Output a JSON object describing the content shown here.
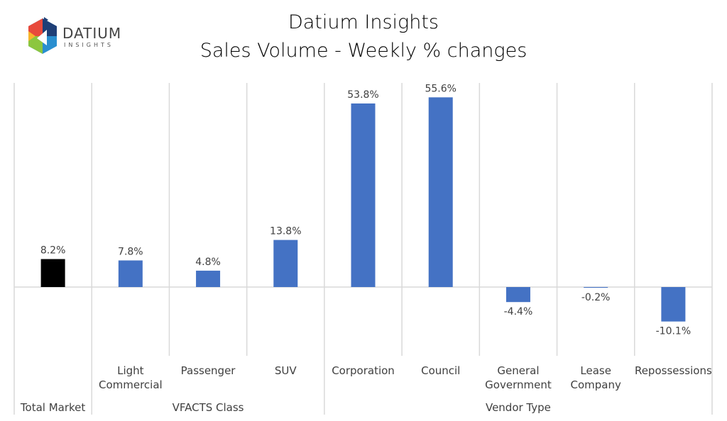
{
  "logo": {
    "text": "DATIUM",
    "subtext": "INSIGHTS"
  },
  "chart_data": {
    "type": "bar",
    "title": "Datium Insights",
    "subtitle": "Sales Volume - Weekly % changes",
    "categories": [
      "Total Market",
      "Light Commercial",
      "Passenger",
      "SUV",
      "Corporation",
      "Council",
      "General Government",
      "Lease Company",
      "Repossessions"
    ],
    "category_lines": [
      [
        "Total Market"
      ],
      [
        "Light",
        "Commercial"
      ],
      [
        "Passenger"
      ],
      [
        "SUV"
      ],
      [
        "Corporation"
      ],
      [
        "Council"
      ],
      [
        "General",
        "Government"
      ],
      [
        "Lease",
        "Company"
      ],
      [
        "Repossessions"
      ]
    ],
    "groups": [
      {
        "label": "Total Market",
        "span": 1,
        "hide_sub": true
      },
      {
        "label": "VFACTS Class",
        "span": 3
      },
      {
        "label": "Vendor Type",
        "span": 5
      }
    ],
    "values": [
      8.2,
      7.8,
      4.8,
      13.8,
      53.8,
      55.6,
      -4.4,
      -0.2,
      -10.1
    ],
    "data_labels": [
      "8.2%",
      "7.8%",
      "4.8%",
      "13.8%",
      "53.8%",
      "55.6%",
      "-4.4%",
      "-0.2%",
      "-10.1%"
    ],
    "colors": [
      "#000000",
      "#4472C4",
      "#4472C4",
      "#4472C4",
      "#4472C4",
      "#4472C4",
      "#4472C4",
      "#4472C4",
      "#4472C4"
    ],
    "ylim": [
      -20,
      60
    ],
    "grid": false,
    "legend": "none"
  }
}
